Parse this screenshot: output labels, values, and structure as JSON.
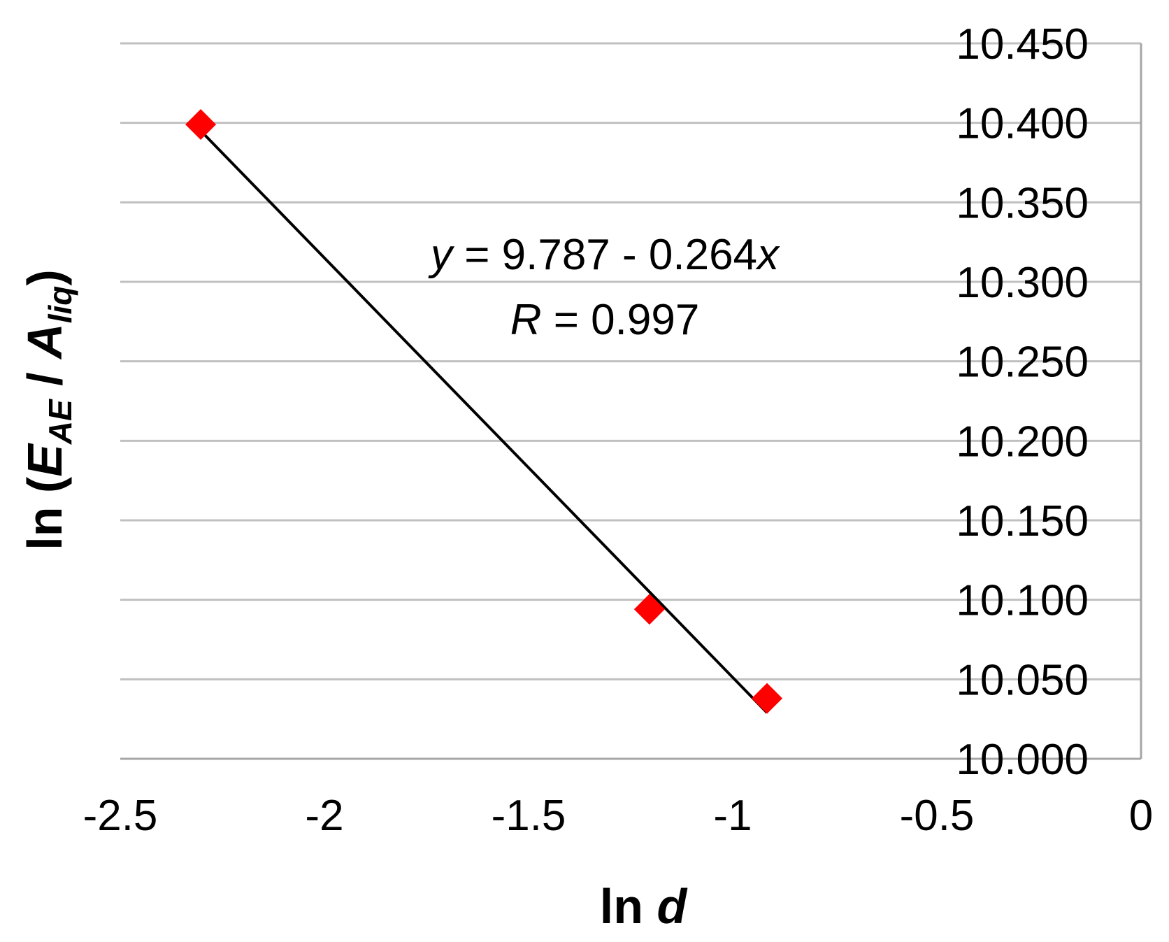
{
  "chart_data": {
    "type": "scatter",
    "xlabel": {
      "main": "ln",
      "var": "d"
    },
    "ylabel": {
      "prefix": "ln (",
      "e": "E",
      "e_sub": "AE",
      "mid": " / ",
      "a": "A",
      "a_sub": "liq",
      "suffix": ")"
    },
    "xlim": [
      -2.5,
      0
    ],
    "ylim": [
      10.0,
      10.45
    ],
    "x_ticks": [
      "-2.5",
      "-2",
      "-1.5",
      "-1",
      "-0.5",
      "0"
    ],
    "y_ticks": [
      "10.000",
      "10.050",
      "10.100",
      "10.150",
      "10.200",
      "10.250",
      "10.300",
      "10.350",
      "10.400",
      "10.450"
    ],
    "grid": "horizontal",
    "y_axis_side": "right",
    "points": [
      {
        "x": -2.303,
        "y": 10.399
      },
      {
        "x": -1.204,
        "y": 10.094
      },
      {
        "x": -0.916,
        "y": 10.038
      }
    ],
    "marker": {
      "shape": "diamond",
      "color": "#ff0000"
    },
    "trendline": {
      "x": [
        -2.303,
        -0.916
      ],
      "y": [
        10.395,
        10.029
      ],
      "color": "#000000"
    },
    "annotation": {
      "line1": {
        "var": "y",
        "mid": " = 9.787 - 0.264",
        "var2": "x"
      },
      "line2": {
        "var": "R",
        "rest": " = 0.997"
      }
    }
  }
}
